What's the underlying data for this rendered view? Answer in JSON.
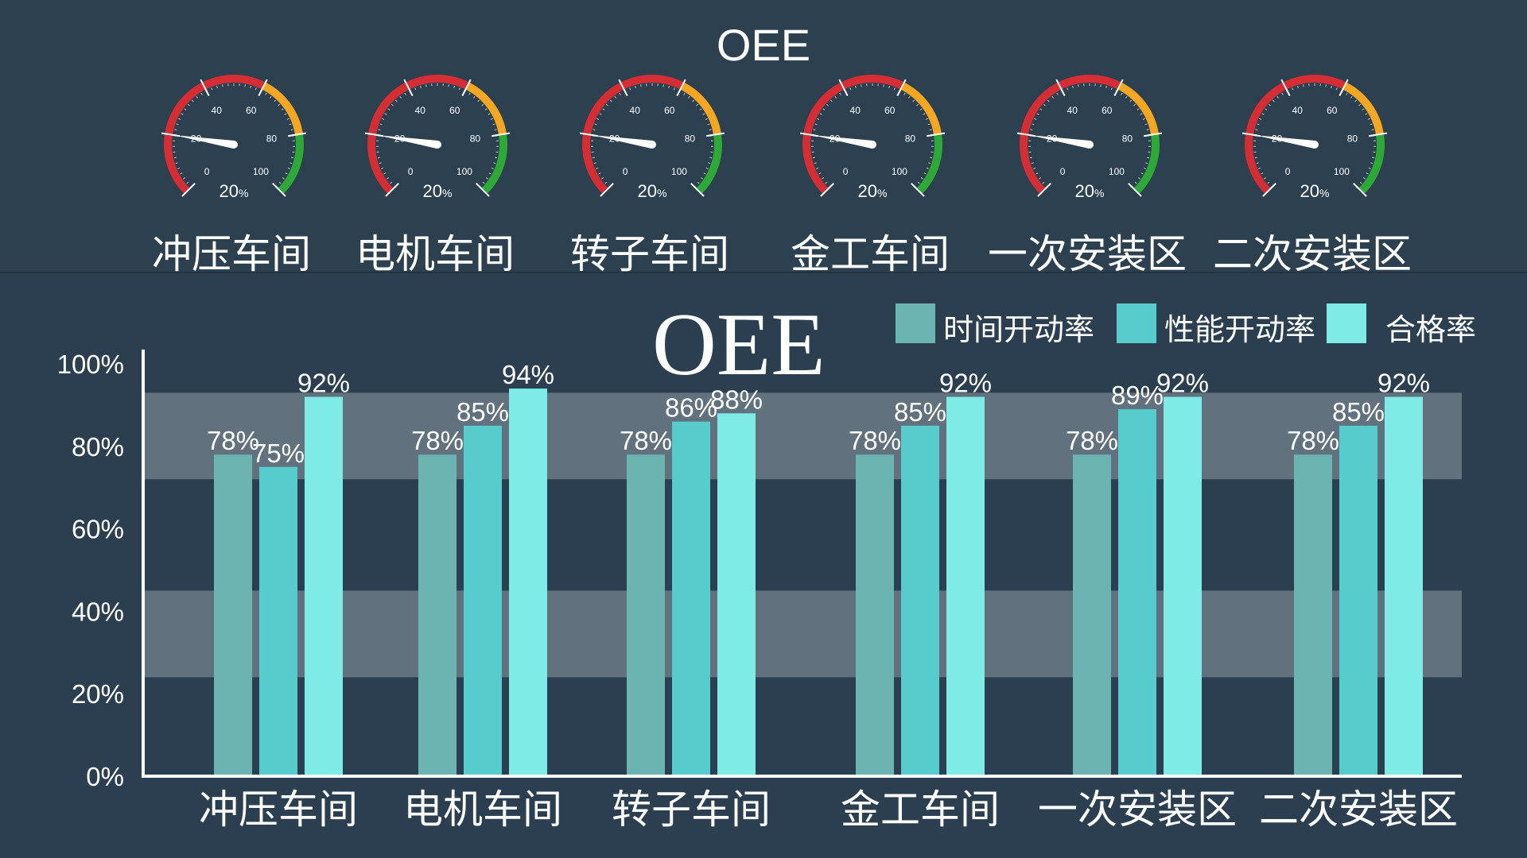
{
  "top_title": "OEE",
  "gauges": [
    {
      "name": "冲压车间",
      "value": 20,
      "unit": "%"
    },
    {
      "name": "电机车间",
      "value": 20,
      "unit": "%"
    },
    {
      "name": "转子车间",
      "value": 20,
      "unit": "%"
    },
    {
      "name": "金工车间",
      "value": 20,
      "unit": "%"
    },
    {
      "name": "一次安装区",
      "value": 20,
      "unit": "%"
    },
    {
      "name": "二次安装区",
      "value": 20,
      "unit": "%"
    }
  ],
  "gauge_scale": {
    "min": 0,
    "max": 100,
    "ticks": [
      "0",
      "20",
      "40",
      "60",
      "80",
      "100"
    ]
  },
  "colors": {
    "background": "#2b3f50",
    "gauge_red": "#d42d33",
    "gauge_orange": "#f5a623",
    "gauge_green": "#2ea836",
    "band": "#62717e",
    "series_1": "#6cb4b2",
    "series_2": "#57cccc",
    "series_3": "#7eebe6"
  },
  "chart_data": {
    "type": "bar",
    "title": "OEE",
    "categories": [
      "冲压车间",
      "电机车间",
      "转子车间",
      "金工车间",
      "一次安装区",
      "二次安装区"
    ],
    "series": [
      {
        "name": "时间开动率",
        "values": [
          78,
          78,
          78,
          78,
          78,
          78
        ]
      },
      {
        "name": "性能开动率",
        "values": [
          75,
          85,
          86,
          85,
          89,
          85
        ]
      },
      {
        "name": "合格率",
        "values": [
          92,
          94,
          88,
          92,
          92,
          92
        ]
      }
    ],
    "y_ticks": [
      "0%",
      "20%",
      "40%",
      "60%",
      "80%",
      "100%"
    ],
    "ylim": [
      0,
      100
    ],
    "shaded_bands": [
      [
        24,
        45
      ],
      [
        72,
        93
      ]
    ],
    "legend_position": "top-right",
    "value_suffix": "%"
  }
}
